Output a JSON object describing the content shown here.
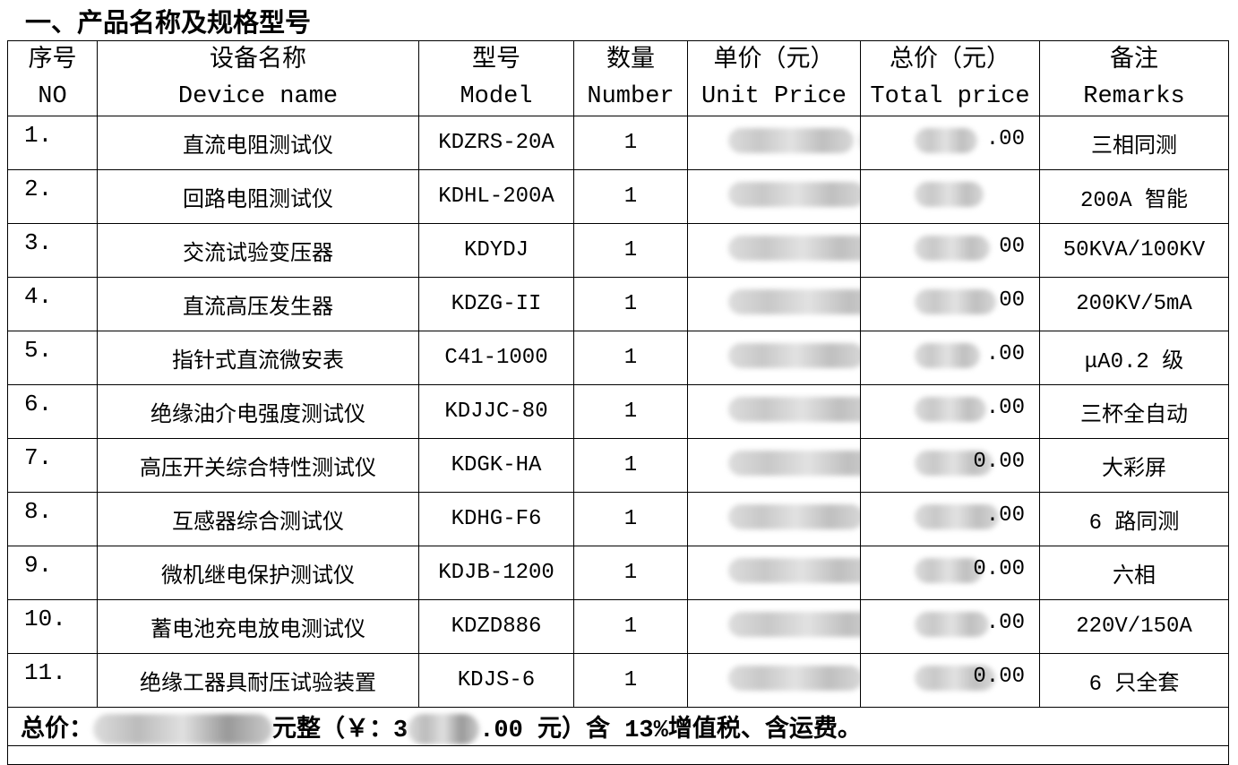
{
  "title": "一、产品名称及规格型号",
  "headers": [
    {
      "cn": "序号",
      "en": "NO"
    },
    {
      "cn": "设备名称",
      "en": "Device name"
    },
    {
      "cn": "型号",
      "en": "Model"
    },
    {
      "cn": "数量",
      "en": "Number"
    },
    {
      "cn": "单价（元）",
      "en": "Unit Price"
    },
    {
      "cn": "总价（元）",
      "en": "Total price"
    },
    {
      "cn": "备注",
      "en": "Remarks"
    }
  ],
  "rows": [
    {
      "no": "1.",
      "name": "直流电阻测试仪",
      "model": "KDZRS-20A",
      "qty": "1",
      "total_visible": ".00",
      "remarks": "三相同测"
    },
    {
      "no": "2.",
      "name": "回路电阻测试仪",
      "model": "KDHL-200A",
      "qty": "1",
      "total_visible": "",
      "remarks": "200A 智能"
    },
    {
      "no": "3.",
      "name": "交流试验变压器",
      "model": "KDYDJ",
      "qty": "1",
      "total_visible": "00",
      "remarks": "50KVA/100KV"
    },
    {
      "no": "4.",
      "name": "直流高压发生器",
      "model": "KDZG-II",
      "qty": "1",
      "total_visible": "00",
      "remarks": "200KV/5mA"
    },
    {
      "no": "5.",
      "name": "指针式直流微安表",
      "model": "C41-1000",
      "qty": "1",
      "total_visible": ".00",
      "remarks": "μA0.2 级"
    },
    {
      "no": "6.",
      "name": "绝缘油介电强度测试仪",
      "model": "KDJJC-80",
      "qty": "1",
      "total_visible": ".00",
      "remarks": "三杯全自动"
    },
    {
      "no": "7.",
      "name": "高压开关综合特性测试仪",
      "model": "KDGK-HA",
      "qty": "1",
      "total_visible": "0.00",
      "remarks": "大彩屏"
    },
    {
      "no": "8.",
      "name": "互感器综合测试仪",
      "model": "KDHG-F6",
      "qty": "1",
      "total_visible": ".00",
      "remarks": "6 路同测"
    },
    {
      "no": "9.",
      "name": "微机继电保护测试仪",
      "model": "KDJB-1200",
      "qty": "1",
      "total_visible": "0.00",
      "remarks": "六相"
    },
    {
      "no": "10.",
      "name": "蓄电池充电放电测试仪",
      "model": "KDZD886",
      "qty": "1",
      "total_visible": ".00",
      "remarks": "220V/150A"
    },
    {
      "no": "11.",
      "name": "绝缘工器具耐压试验装置",
      "model": "KDJS-6",
      "qty": "1",
      "total_visible": "0.00",
      "remarks": "6 只全套"
    }
  ],
  "footer": {
    "label": "总价：",
    "text_a": "元整（￥：3",
    "text_b": ".00 元）含 13%增值税、含运费。"
  }
}
